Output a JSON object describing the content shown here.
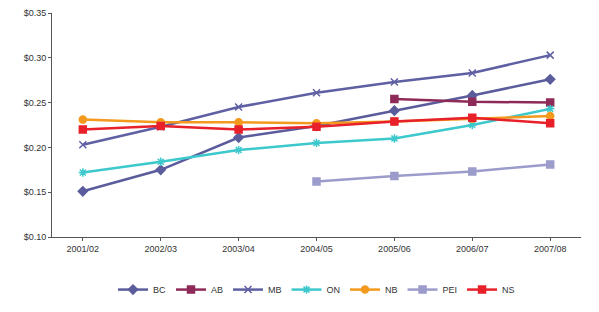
{
  "chart_data": {
    "type": "line",
    "categories": [
      "2001/02",
      "2002/03",
      "2003/04",
      "2004/05",
      "2005/06",
      "2006/07",
      "2007/08"
    ],
    "series": [
      {
        "name": "BC",
        "color": "#5b5c9c",
        "marker": "diamond",
        "values": [
          0.151,
          0.175,
          0.211,
          0.224,
          0.241,
          0.258,
          0.276
        ]
      },
      {
        "name": "AB",
        "color": "#8e2a58",
        "marker": "square",
        "values": [
          null,
          null,
          null,
          null,
          0.254,
          0.251,
          0.25
        ]
      },
      {
        "name": "MB",
        "color": "#5f5fa3",
        "marker": "x",
        "values": [
          0.203,
          0.223,
          0.245,
          0.261,
          0.273,
          0.283,
          0.303
        ]
      },
      {
        "name": "ON",
        "color": "#3cc8cc",
        "marker": "asterisk",
        "values": [
          0.172,
          0.184,
          0.197,
          0.205,
          0.21,
          0.225,
          0.243
        ]
      },
      {
        "name": "NB",
        "color": "#f39a1e",
        "marker": "circle",
        "values": [
          0.231,
          0.228,
          0.228,
          0.227,
          0.229,
          0.232,
          0.235
        ]
      },
      {
        "name": "PEI",
        "color": "#9c9ccc",
        "marker": "square",
        "values": [
          null,
          null,
          null,
          0.162,
          0.168,
          0.173,
          0.181
        ]
      },
      {
        "name": "NS",
        "color": "#e8202a",
        "marker": "square",
        "values": [
          0.22,
          0.224,
          0.22,
          0.223,
          0.229,
          0.233,
          0.227
        ]
      }
    ],
    "ylim": [
      0.1,
      0.35
    ],
    "yticks": [
      {
        "value": 0.1,
        "label": "$0.10"
      },
      {
        "value": 0.15,
        "label": "$0.15"
      },
      {
        "value": 0.2,
        "label": "$0.20"
      },
      {
        "value": 0.25,
        "label": "$0.25"
      },
      {
        "value": 0.3,
        "label": "$0.30"
      },
      {
        "value": 0.35,
        "label": "$0.35"
      }
    ],
    "grid": false,
    "legend": "bottom"
  }
}
